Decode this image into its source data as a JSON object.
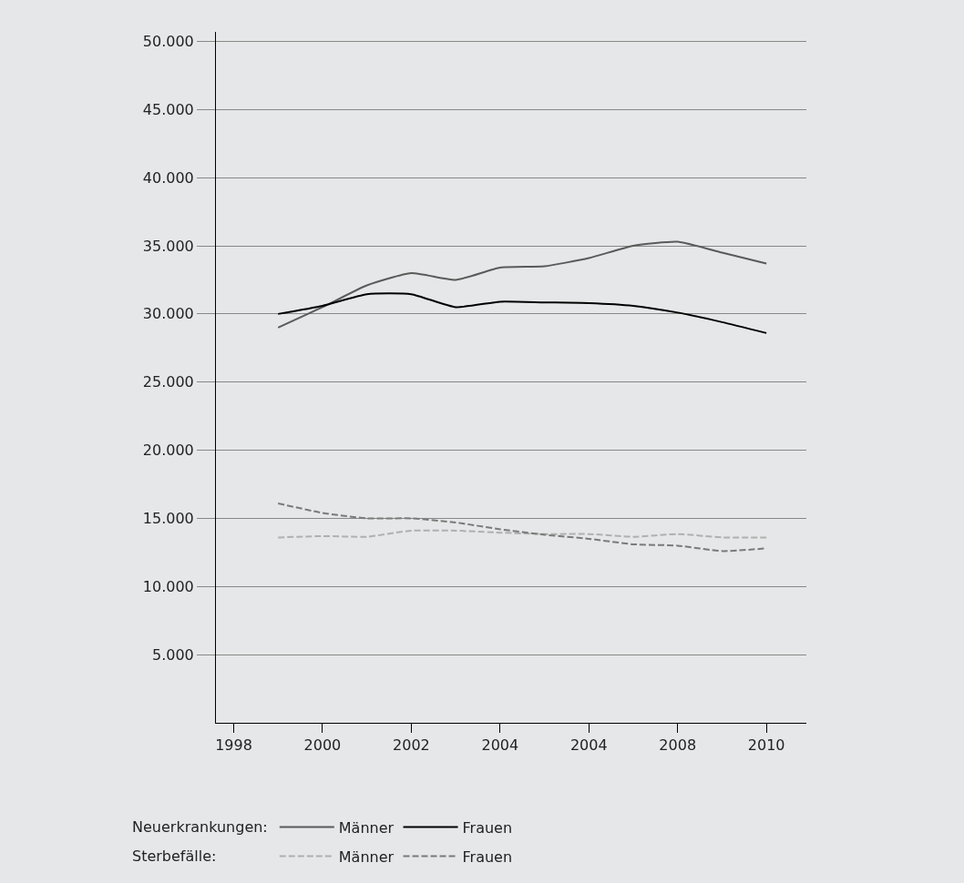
{
  "chart_data": {
    "type": "line",
    "categories": [
      "1998",
      null,
      "2000",
      null,
      "2002",
      null,
      "2004",
      null,
      "2004",
      null,
      "2008",
      null,
      "2010"
    ],
    "series": [
      {
        "name": "Männer",
        "color": "#5a5a5a",
        "line_style": "solid",
        "values": [
          null,
          29000,
          30500,
          32100,
          33000,
          32500,
          33400,
          33500,
          34100,
          35000,
          35300,
          34500,
          33700
        ]
      },
      {
        "name": "Frauen",
        "color": "#000000",
        "line_style": "solid",
        "values": [
          null,
          30000,
          30600,
          31450,
          31450,
          30500,
          30900,
          30850,
          30800,
          30600,
          30100,
          29400,
          28600
        ]
      },
      {
        "name": "Männer",
        "color": "#b0b0b0",
        "line_style": "dashed",
        "values": [
          null,
          13600,
          13700,
          13650,
          14100,
          14100,
          13950,
          13850,
          13850,
          13650,
          13850,
          13600,
          13600
        ]
      },
      {
        "name": "Frauen",
        "color": "#7a7a7a",
        "line_style": "dashed",
        "values": [
          null,
          16100,
          15400,
          15000,
          15000,
          14700,
          14200,
          13800,
          13500,
          13100,
          13000,
          12600,
          12800
        ]
      }
    ],
    "annotations": [
      "Neuerkrankungen:",
      "Sterbefälle:"
    ],
    "ylim": [
      0,
      50700
    ],
    "yticks": [
      {
        "value": 5000,
        "label": "5.000"
      },
      {
        "value": 10000,
        "label": "10.000"
      },
      {
        "value": 15000,
        "label": "15.000"
      },
      {
        "value": 20000,
        "label": "20.000"
      },
      {
        "value": 25000,
        "label": "25.000"
      },
      {
        "value": 30000,
        "label": "30.000"
      },
      {
        "value": 35000,
        "label": "35.000"
      },
      {
        "value": 40000,
        "label": "40.000"
      },
      {
        "value": 45000,
        "label": "45.000"
      },
      {
        "value": 50000,
        "label": "50.000"
      }
    ],
    "grid": "y",
    "legend": "bottom",
    "marker": "none"
  }
}
